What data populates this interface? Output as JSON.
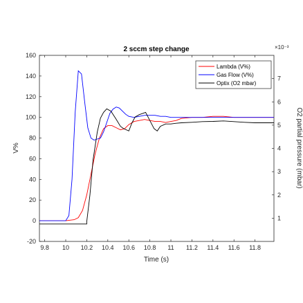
{
  "chart_data": {
    "type": "line",
    "title": "2 sccm step change",
    "xlabel": "Time (s)",
    "ylabel_left": "V%",
    "ylabel_right": "O2 partial pressure (mbar)",
    "right_axis_exponent": "×10⁻³",
    "xlim": [
      9.75,
      11.98
    ],
    "ylim_left": [
      -20,
      160
    ],
    "ylim_right": [
      0.0,
      8.0
    ],
    "x_ticks": [
      "9.8",
      "10",
      "10.2",
      "10.4",
      "10.6",
      "10.8",
      "11",
      "11.2",
      "11.4",
      "11.6",
      "11.8"
    ],
    "x_tick_values": [
      9.8,
      10.0,
      10.2,
      10.4,
      10.6,
      10.8,
      11.0,
      11.2,
      11.4,
      11.6,
      11.8
    ],
    "y_ticks_left": [
      "-20",
      "0",
      "20",
      "40",
      "60",
      "80",
      "100",
      "120",
      "140",
      "160"
    ],
    "y_tick_values_left": [
      -20,
      0,
      20,
      40,
      60,
      80,
      100,
      120,
      140,
      160
    ],
    "y_ticks_right": [
      "1",
      "2",
      "3",
      "4",
      "5",
      "6",
      "7"
    ],
    "y_tick_values_right": [
      1,
      2,
      3,
      4,
      5,
      6,
      7
    ],
    "grid": false,
    "legend_position": "top-right",
    "series": [
      {
        "name": "Lambda (V%)",
        "axis": "left",
        "color": "#ff0000",
        "x": [
          9.75,
          10.0,
          10.08,
          10.12,
          10.16,
          10.2,
          10.24,
          10.28,
          10.32,
          10.36,
          10.4,
          10.44,
          10.48,
          10.52,
          10.56,
          10.6,
          10.65,
          10.7,
          10.75,
          10.8,
          10.85,
          10.9,
          10.95,
          11.0,
          11.05,
          11.1,
          11.2,
          11.3,
          11.4,
          11.5,
          11.6,
          11.7,
          11.8,
          11.9,
          11.98
        ],
        "y": [
          0,
          0,
          1,
          3,
          10,
          25,
          45,
          65,
          80,
          89,
          92,
          92,
          90,
          88,
          89,
          93,
          96,
          97,
          98,
          97,
          96,
          96,
          95,
          96,
          97,
          99,
          100,
          100,
          101,
          101,
          100,
          100,
          100,
          100,
          100
        ]
      },
      {
        "name": "Gas Flow (V%)",
        "axis": "left",
        "color": "#0000ff",
        "x": [
          9.75,
          10.0,
          10.03,
          10.06,
          10.09,
          10.12,
          10.15,
          10.18,
          10.21,
          10.24,
          10.27,
          10.3,
          10.33,
          10.36,
          10.39,
          10.42,
          10.45,
          10.48,
          10.51,
          10.54,
          10.57,
          10.6,
          10.65,
          10.7,
          10.75,
          10.8,
          10.85,
          10.9,
          10.95,
          11.0,
          11.05,
          11.1,
          11.2,
          11.3,
          11.4,
          11.5,
          11.6,
          11.7,
          11.8,
          11.9,
          11.98
        ],
        "y": [
          0,
          0,
          5,
          40,
          105,
          145,
          142,
          115,
          90,
          80,
          78,
          79,
          80,
          86,
          95,
          104,
          108,
          110,
          109,
          106,
          103,
          101,
          100,
          101,
          102,
          102,
          102,
          101,
          101,
          100,
          100,
          100,
          100,
          100,
          100,
          100,
          100,
          100,
          100,
          100,
          100
        ]
      },
      {
        "name": "Optix (O2 mbar)",
        "axis": "right",
        "color": "#000000",
        "x": [
          9.75,
          10.2,
          10.2,
          10.23,
          10.26,
          10.3,
          10.33,
          10.36,
          10.39,
          10.43,
          10.48,
          10.52,
          10.55,
          10.6,
          10.63,
          10.66,
          10.7,
          10.73,
          10.76,
          10.8,
          10.84,
          10.87,
          10.9,
          10.95,
          11.0,
          11.05,
          11.1,
          11.2,
          11.3,
          11.4,
          11.5,
          11.6,
          11.7,
          11.8,
          11.9,
          11.98
        ],
        "y": [
          0.75,
          0.75,
          0.85,
          2.0,
          3.5,
          4.7,
          5.3,
          5.55,
          5.7,
          5.6,
          5.25,
          4.95,
          4.85,
          4.75,
          5.1,
          5.35,
          5.45,
          5.5,
          5.55,
          5.2,
          4.85,
          4.75,
          4.95,
          5.05,
          5.05,
          5.08,
          5.1,
          5.12,
          5.15,
          5.16,
          5.18,
          5.15,
          5.12,
          5.1,
          5.1,
          5.1
        ]
      }
    ]
  }
}
